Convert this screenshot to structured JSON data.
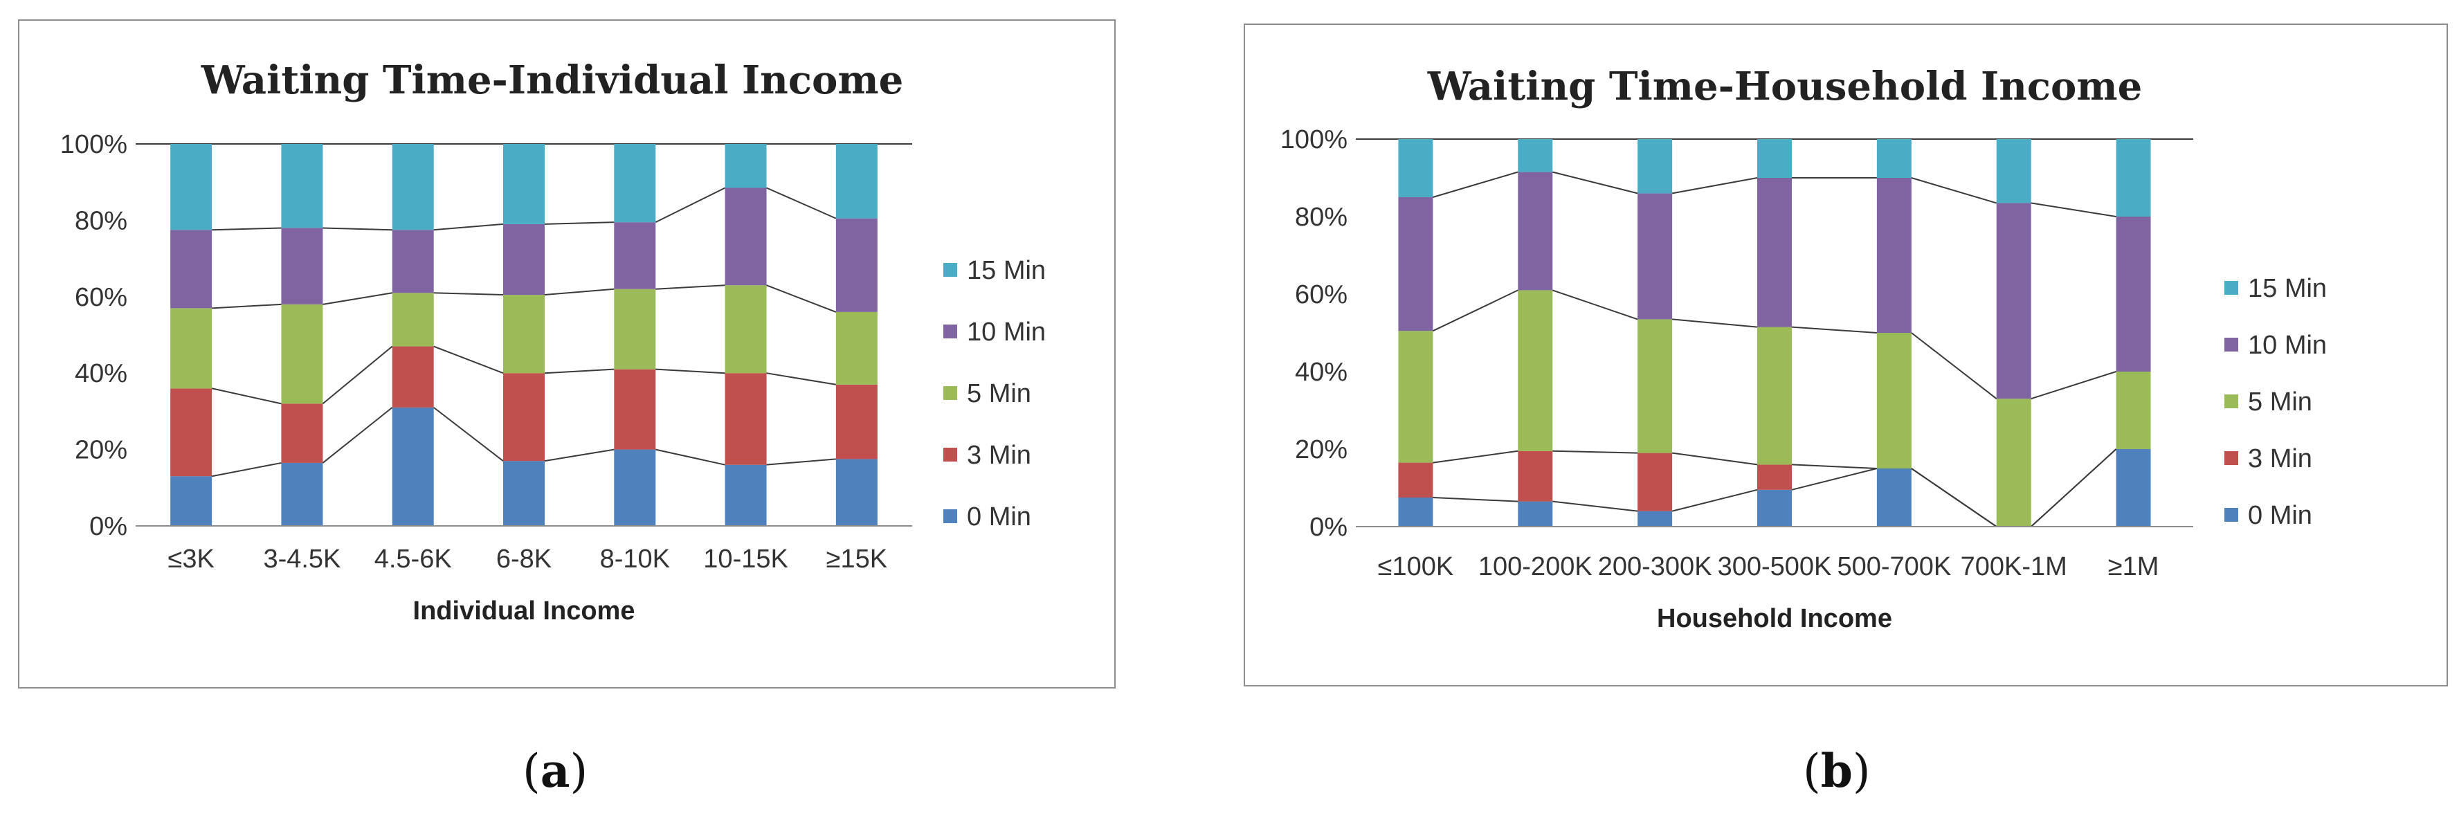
{
  "chart_data": [
    {
      "type": "bar",
      "stacked": true,
      "normalized": true,
      "title": "Waiting Time-Individual Income",
      "xlabel": "Individual Income",
      "ylabel": "",
      "ylim": [
        0,
        100
      ],
      "yticks": [
        "0%",
        "20%",
        "40%",
        "60%",
        "80%",
        "100%"
      ],
      "categories": [
        "≤3K",
        "3-4.5K",
        "4.5-6K",
        "6-8K",
        "8-10K",
        "10-15K",
        "≥15K"
      ],
      "series": [
        {
          "name": "0 Min",
          "color": "#4f81bd",
          "values": [
            13,
            16.5,
            31,
            17,
            20,
            16,
            17.5
          ]
        },
        {
          "name": "3 Min",
          "color": "#c0504d",
          "values": [
            23,
            15.5,
            16,
            23,
            21,
            24,
            19.5
          ]
        },
        {
          "name": "5 Min",
          "color": "#9bbb59",
          "values": [
            21,
            26,
            14,
            20.5,
            21,
            23,
            19
          ]
        },
        {
          "name": "10 Min",
          "color": "#8064a2",
          "values": [
            20.5,
            20,
            16.5,
            18.5,
            17.5,
            25.5,
            24.5
          ]
        },
        {
          "name": "15 Min",
          "color": "#4bacc6",
          "values": [
            22.5,
            22,
            22.5,
            21,
            20.5,
            11.5,
            19.5
          ]
        }
      ],
      "legend_position": "right",
      "connector_lines": true
    },
    {
      "type": "bar",
      "stacked": true,
      "normalized": true,
      "title": "Waiting Time-Household Income",
      "xlabel": "Household Income",
      "ylabel": "",
      "ylim": [
        0,
        100
      ],
      "yticks": [
        "0%",
        "20%",
        "40%",
        "60%",
        "80%",
        "100%"
      ],
      "categories": [
        "≤100K",
        "100-200K",
        "200-300K",
        "300-500K",
        "500-700K",
        "700K-1M",
        "≥1M"
      ],
      "series": [
        {
          "name": "0 Min",
          "color": "#4f81bd",
          "values": [
            7.5,
            6.5,
            4,
            9.5,
            15,
            0,
            20
          ]
        },
        {
          "name": "3 Min",
          "color": "#c0504d",
          "values": [
            9,
            13,
            15,
            6.5,
            0,
            0,
            0
          ]
        },
        {
          "name": "5 Min",
          "color": "#9bbb59",
          "values": [
            34,
            41.5,
            34.5,
            35.5,
            35,
            33,
            20
          ]
        },
        {
          "name": "10 Min",
          "color": "#8064a2",
          "values": [
            34.5,
            30.5,
            32.5,
            38.5,
            40,
            50.5,
            40
          ]
        },
        {
          "name": "15 Min",
          "color": "#4bacc6",
          "values": [
            15,
            8.5,
            14,
            10,
            10,
            16.5,
            20
          ]
        }
      ],
      "legend_position": "right",
      "connector_lines": true
    }
  ],
  "captions": {
    "a": {
      "open": "(",
      "letter": "a",
      "close": ")"
    },
    "b": {
      "open": "(",
      "letter": "b",
      "close": ")"
    }
  }
}
